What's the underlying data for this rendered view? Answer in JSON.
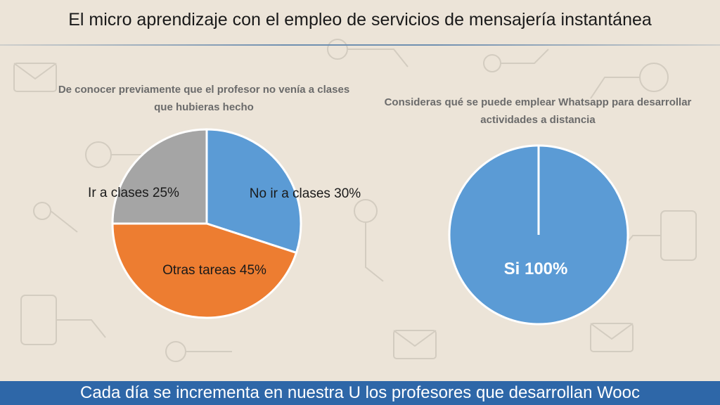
{
  "slide": {
    "title": "El micro aprendizaje con el empleo de servicios de mensajería instantánea",
    "footer": "Cada día se incrementa en nuestra U los profesores que desarrollan Wooc"
  },
  "colors": {
    "blue": "#5b9bd5",
    "orange": "#ed7d31",
    "gray": "#a5a5a5",
    "footer": "#2e67a8"
  },
  "chart_data": [
    {
      "type": "pie",
      "title": "De conocer previamente que el profesor no venía a clases que hubieras hecho",
      "slices": [
        {
          "label": "No ir a clases 30%",
          "value": 30,
          "color": "#5b9bd5"
        },
        {
          "label": "Otras tareas 45%",
          "value": 45,
          "color": "#ed7d31"
        },
        {
          "label": "Ir a clases 25%",
          "value": 25,
          "color": "#a5a5a5"
        }
      ]
    },
    {
      "type": "pie",
      "title": "Consideras qué se puede emplear Whatsapp para desarrollar actividades a distancia",
      "slices": [
        {
          "label": "Si 100%",
          "value": 100,
          "color": "#5b9bd5"
        }
      ]
    }
  ]
}
